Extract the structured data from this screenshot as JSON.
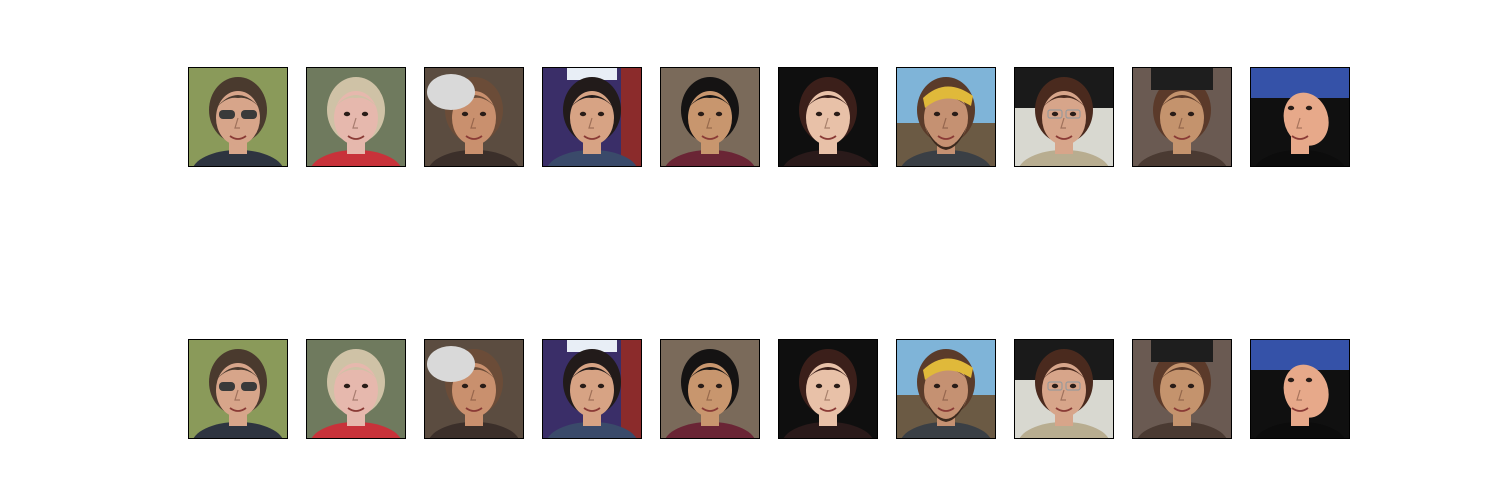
{
  "figure": {
    "rows": [
      {
        "name": "top-row",
        "tiles": [
          {
            "subject": "woman-with-sunglasses-face-photo",
            "bg": "#8a9a5a",
            "skin": "#d7a58a",
            "hair": "#4a3a2e",
            "accent": "#3a3a3a",
            "shirt": "#2e3440"
          },
          {
            "subject": "smiling-girl-face-photo",
            "bg": "#6f7a5e",
            "skin": "#e6b8ad",
            "hair": "#cfc2a6",
            "accent": "#b8323a",
            "shirt": "#c8323a"
          },
          {
            "subject": "girl-with-feather-mask-face-photo",
            "bg": "#5b4c40",
            "skin": "#c9906e",
            "hair": "#6b4c38",
            "accent": "#d9d9d9",
            "shirt": "#3b2f2a"
          },
          {
            "subject": "young-man-face-photo",
            "bg": "#3a2e68",
            "skin": "#d7a384",
            "hair": "#221b1a",
            "accent": "#8b2b2b",
            "shirt": "#3a4a6a"
          },
          {
            "subject": "man-in-maroon-shirt-face-photo",
            "bg": "#7a6a5a",
            "skin": "#c8966e",
            "hair": "#151313",
            "accent": "#3b3a38",
            "shirt": "#6a2535"
          },
          {
            "subject": "young-woman-face-photo",
            "bg": "#0f0f0f",
            "skin": "#e8c1a8",
            "hair": "#3b1f1a",
            "accent": "#1f6f78",
            "shirt": "#2a1a1a"
          },
          {
            "subject": "bearded-man-with-yellow-bandana-face-photo",
            "bg": "#7fb4d8",
            "skin": "#c59172",
            "hair": "#5a3b2a",
            "accent": "#e0b93a",
            "shirt": "#3a3f45"
          },
          {
            "subject": "man-with-glasses-face-photo",
            "bg": "#1a1a1a",
            "skin": "#d7a58a",
            "hair": "#4a2a1e",
            "accent": "#9a9a9a",
            "shirt": "#b8ad90"
          },
          {
            "subject": "woman-with-graduation-cap-face-photo",
            "bg": "#6a5a52",
            "skin": "#c4936d",
            "hair": "#5b3a2a",
            "accent": "#1e1e1e",
            "shirt": "#4a3a32"
          },
          {
            "subject": "bald-man-looking-up-face-photo",
            "bg": "#101010",
            "skin": "#e7a98a",
            "hair": "#e7a98a",
            "accent": "#3552a8",
            "shirt": "#0c0c0c"
          }
        ]
      },
      {
        "name": "bottom-row",
        "tiles": [
          {
            "subject": "woman-with-sunglasses-face-photo",
            "bg": "#8a9a5a",
            "skin": "#d7a58a",
            "hair": "#4a3a2e",
            "accent": "#3a3a3a",
            "shirt": "#2e3440"
          },
          {
            "subject": "smiling-girl-face-photo",
            "bg": "#6f7a5e",
            "skin": "#e6b8ad",
            "hair": "#cfc2a6",
            "accent": "#b8323a",
            "shirt": "#c8323a"
          },
          {
            "subject": "girl-with-feather-mask-face-photo",
            "bg": "#5b4c40",
            "skin": "#c9906e",
            "hair": "#6b4c38",
            "accent": "#d9d9d9",
            "shirt": "#3b2f2a"
          },
          {
            "subject": "young-man-face-photo",
            "bg": "#3a2e68",
            "skin": "#d7a384",
            "hair": "#221b1a",
            "accent": "#8b2b2b",
            "shirt": "#3a4a6a"
          },
          {
            "subject": "man-in-maroon-shirt-face-photo",
            "bg": "#7a6a5a",
            "skin": "#c8966e",
            "hair": "#151313",
            "accent": "#3b3a38",
            "shirt": "#6a2535"
          },
          {
            "subject": "young-woman-face-photo",
            "bg": "#0f0f0f",
            "skin": "#e8c1a8",
            "hair": "#3b1f1a",
            "accent": "#1f6f78",
            "shirt": "#2a1a1a"
          },
          {
            "subject": "bearded-man-with-yellow-bandana-face-photo",
            "bg": "#7fb4d8",
            "skin": "#c59172",
            "hair": "#5a3b2a",
            "accent": "#e0b93a",
            "shirt": "#3a3f45"
          },
          {
            "subject": "man-with-glasses-face-photo",
            "bg": "#1a1a1a",
            "skin": "#d7a58a",
            "hair": "#4a2a1e",
            "accent": "#9a9a9a",
            "shirt": "#b8ad90"
          },
          {
            "subject": "woman-with-graduation-cap-face-photo",
            "bg": "#6a5a52",
            "skin": "#c4936d",
            "hair": "#5b3a2a",
            "accent": "#1e1e1e",
            "shirt": "#4a3a32"
          },
          {
            "subject": "bald-man-looking-up-face-photo",
            "bg": "#101010",
            "skin": "#e7a98a",
            "hair": "#e7a98a",
            "accent": "#3552a8",
            "shirt": "#0c0c0c"
          }
        ]
      }
    ]
  }
}
